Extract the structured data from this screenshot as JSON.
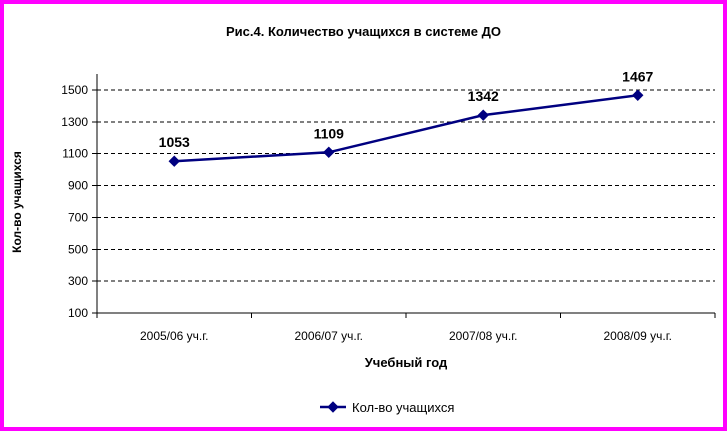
{
  "chart_data": {
    "type": "line",
    "title": "Рис.4. Количество учащихся в системе ДО",
    "xlabel": "Учебный год",
    "ylabel": "Кол-во учащихся",
    "categories": [
      "2005/06 уч.г.",
      "2006/07 уч.г.",
      "2007/08 уч.г.",
      "2008/09 уч.г."
    ],
    "series": [
      {
        "name": "Кол-во учащихся",
        "values": [
          1053,
          1109,
          1342,
          1467
        ]
      }
    ],
    "data_labels": [
      "1053",
      "1109",
      "1342",
      "1467"
    ],
    "ylim": [
      100,
      1500
    ],
    "yticks": [
      100,
      300,
      500,
      700,
      900,
      1100,
      1300,
      1500
    ],
    "grid": "horizontal dashed",
    "legend_position": "bottom",
    "marker": "diamond",
    "colors": {
      "series": "#000080",
      "frame": "#ff00ff",
      "grid": "#000000"
    }
  }
}
